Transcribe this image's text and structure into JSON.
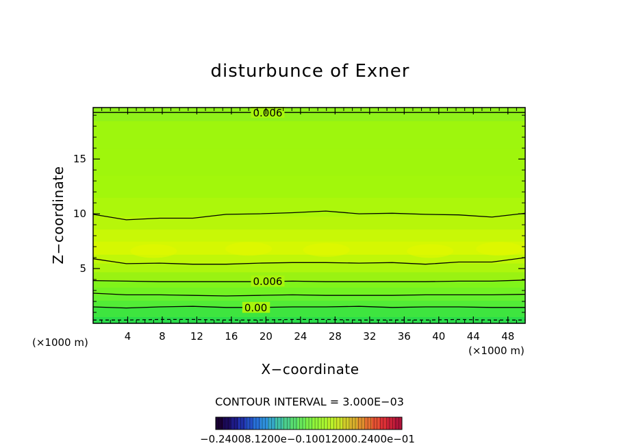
{
  "chart_data": {
    "type": "contour",
    "title": "disturbunce of Exner",
    "xlabel": "X−coordinate",
    "ylabel": "Z−coordinate",
    "x_unit": "(×1000 m)",
    "y_unit": "(×1000 m)",
    "xlim": [
      0,
      50
    ],
    "ylim": [
      0,
      19.7
    ],
    "x_ticks": [
      4,
      8,
      12,
      16,
      20,
      24,
      28,
      32,
      36,
      40,
      44,
      48
    ],
    "y_ticks": [
      5,
      10,
      15
    ],
    "contour_interval_text": "CONTOUR INTERVAL = 3.000E−03",
    "contour_labels": [
      {
        "text": "0.006",
        "x": 18.5,
        "z": 19.2
      },
      {
        "text": "0.006",
        "x": 18.5,
        "z": 3.8
      },
      {
        "text": "0.00",
        "x": 17.5,
        "z": 1.4
      }
    ],
    "contours": [
      {
        "style": "solid",
        "z": [
          19.25,
          19.25,
          19.25,
          19.25,
          19.25,
          19.25,
          19.25,
          19.25,
          19.25,
          19.25,
          19.25,
          19.25,
          19.25,
          19.25
        ]
      },
      {
        "style": "solid",
        "z": [
          9.95,
          9.45,
          9.6,
          9.6,
          9.95,
          10.0,
          10.1,
          10.25,
          10.0,
          10.05,
          9.95,
          9.9,
          9.7,
          10.05
        ]
      },
      {
        "style": "solid",
        "z": [
          5.9,
          5.45,
          5.5,
          5.4,
          5.4,
          5.5,
          5.55,
          5.55,
          5.5,
          5.55,
          5.4,
          5.6,
          5.6,
          6.0
        ]
      },
      {
        "style": "solid",
        "z": [
          3.9,
          3.85,
          3.8,
          3.8,
          3.8,
          3.8,
          3.85,
          3.8,
          3.8,
          3.8,
          3.8,
          3.85,
          3.85,
          3.95
        ]
      },
      {
        "style": "solid",
        "z": [
          2.75,
          2.6,
          2.6,
          2.55,
          2.5,
          2.55,
          2.6,
          2.55,
          2.55,
          2.55,
          2.6,
          2.6,
          2.6,
          2.65
        ]
      },
      {
        "style": "solid",
        "z": [
          1.5,
          1.4,
          1.5,
          1.55,
          1.45,
          1.45,
          1.5,
          1.5,
          1.55,
          1.45,
          1.5,
          1.5,
          1.45,
          1.45
        ]
      },
      {
        "style": "dashed",
        "z": [
          0.3,
          0.3,
          0.35,
          0.35,
          0.3,
          0.3,
          0.35,
          0.35,
          0.3,
          0.3,
          0.3,
          0.35,
          0.3,
          0.3
        ]
      }
    ],
    "fill_bands": [
      {
        "z0": 0.0,
        "z1": 0.6,
        "color": "#2bdc4a"
      },
      {
        "z0": 0.6,
        "z1": 1.5,
        "color": "#3ee53f"
      },
      {
        "z0": 1.5,
        "z1": 2.1,
        "color": "#52ec36"
      },
      {
        "z0": 2.1,
        "z1": 2.6,
        "color": "#64f02e"
      },
      {
        "z0": 2.6,
        "z1": 3.3,
        "color": "#72f222"
      },
      {
        "z0": 3.3,
        "z1": 3.9,
        "color": "#80f41a"
      },
      {
        "z0": 3.9,
        "z1": 4.7,
        "color": "#9af212"
      },
      {
        "z0": 4.7,
        "z1": 5.5,
        "color": "#aef50d"
      },
      {
        "z0": 5.5,
        "z1": 6.3,
        "color": "#c0f708"
      },
      {
        "z0": 6.3,
        "z1": 7.5,
        "color": "#d5f802"
      },
      {
        "z0": 7.5,
        "z1": 8.6,
        "color": "#c8f806"
      },
      {
        "z0": 8.6,
        "z1": 9.8,
        "color": "#b7f60a"
      },
      {
        "z0": 9.8,
        "z1": 11.5,
        "color": "#acf70b"
      },
      {
        "z0": 11.5,
        "z1": 13.5,
        "color": "#a2f70b"
      },
      {
        "z0": 13.5,
        "z1": 16.0,
        "color": "#9ff60c"
      },
      {
        "z0": 16.0,
        "z1": 18.5,
        "color": "#9ef60d"
      },
      {
        "z0": 18.5,
        "z1": 19.7,
        "color": "#90f21a"
      }
    ],
    "colorbar": {
      "tick_text": "−0.24008.1200e−0.10012000.2400e−01",
      "colors": [
        "#1a0033",
        "#1b0a5a",
        "#1e1a86",
        "#2030a8",
        "#2450c4",
        "#2870d8",
        "#2e90dc",
        "#36a8c8",
        "#40c0a8",
        "#4ccf8c",
        "#58dc70",
        "#68e85a",
        "#7cf048",
        "#92f43a",
        "#a8f530",
        "#bcf12a",
        "#c8e428",
        "#d0cc2a",
        "#d8b02c",
        "#e0902e",
        "#e47030",
        "#e45032",
        "#dc3036",
        "#c82038",
        "#b0143a"
      ]
    }
  }
}
